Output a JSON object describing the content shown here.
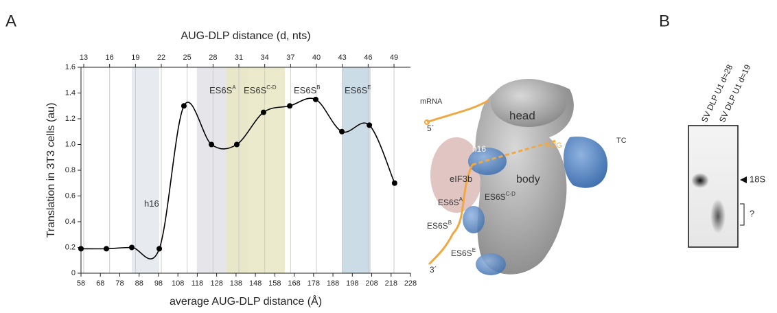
{
  "panels": {
    "a": "A",
    "b": "B"
  },
  "chart_data": {
    "type": "line",
    "title": "AUG-DLP distance (d, nts)",
    "xlabel": "average AUG-DLP distance (Å)",
    "ylabel": "Translation in 3T3 cells (au)",
    "x": [
      58,
      71.1,
      84.2,
      98.4,
      111.1,
      125.3,
      138.4,
      152.2,
      165.7,
      179.1,
      192.6,
      206.8,
      219.8
    ],
    "series": [
      {
        "color": "#000000",
        "values": [
          0.19,
          0.19,
          0.2,
          0.19,
          1.3,
          1.0,
          1.0,
          1.25,
          1.3,
          1.35,
          1.1,
          1.15,
          0.7
        ]
      }
    ],
    "xlim": [
      58,
      228
    ],
    "xticks": [
      58,
      68,
      78,
      88,
      98,
      108,
      118,
      128,
      138,
      148,
      158,
      168,
      178,
      188,
      198,
      208,
      218,
      228
    ],
    "x2lim": [
      12.68,
      50.91
    ],
    "x2ticks": [
      13,
      16,
      19,
      22,
      25,
      28,
      31,
      34,
      37,
      40,
      43,
      46,
      49
    ],
    "ylim": [
      0,
      1.6
    ],
    "yticks": [
      0,
      0.2,
      0.4,
      0.6,
      0.8,
      {
        "value": 1,
        "label": "1.0"
      },
      1.2,
      1.4,
      1.6
    ],
    "grid": true,
    "bands": [
      {
        "xlim": [
          84.2,
          98.4
        ],
        "color": "#e3e8ec"
      },
      {
        "xlim": [
          117.8,
          144.4
        ],
        "color": "#e2e2e6"
      },
      {
        "xlim": [
          133.1,
          163.2
        ],
        "color": "#e8e6c4"
      },
      {
        "xlim": [
          192.6,
          207.4
        ],
        "color": "#c2d6e2"
      }
    ],
    "annotations": [
      {
        "text": "h16"
      },
      {
        "text": "ES6S",
        "sup": "A"
      },
      {
        "text": "ES6S",
        "sup": "C-D"
      },
      {
        "text": "ES6S",
        "sup": "B"
      },
      {
        "text": "ES6S",
        "sup": "E"
      }
    ]
  },
  "structure": {
    "labels": [
      {
        "text": "mRNA"
      },
      {
        "text": "5´"
      },
      {
        "text": "head"
      },
      {
        "text": "AUG"
      },
      {
        "text": "TC"
      },
      {
        "text": "h16"
      },
      {
        "text": "eIF3b"
      },
      {
        "text": "body"
      },
      {
        "text": "ES6S",
        "sup": "A"
      },
      {
        "text": "ES6S",
        "sup": "C-D"
      },
      {
        "text": "ES6S",
        "sup": "B"
      },
      {
        "text": "3´"
      },
      {
        "text": "ES6S",
        "sup": "E"
      }
    ]
  },
  "gel": {
    "lanes": [
      "SV DLP U1 d=28",
      "SV DLP U1 d=19"
    ],
    "bands": [
      "18S",
      "?"
    ]
  }
}
